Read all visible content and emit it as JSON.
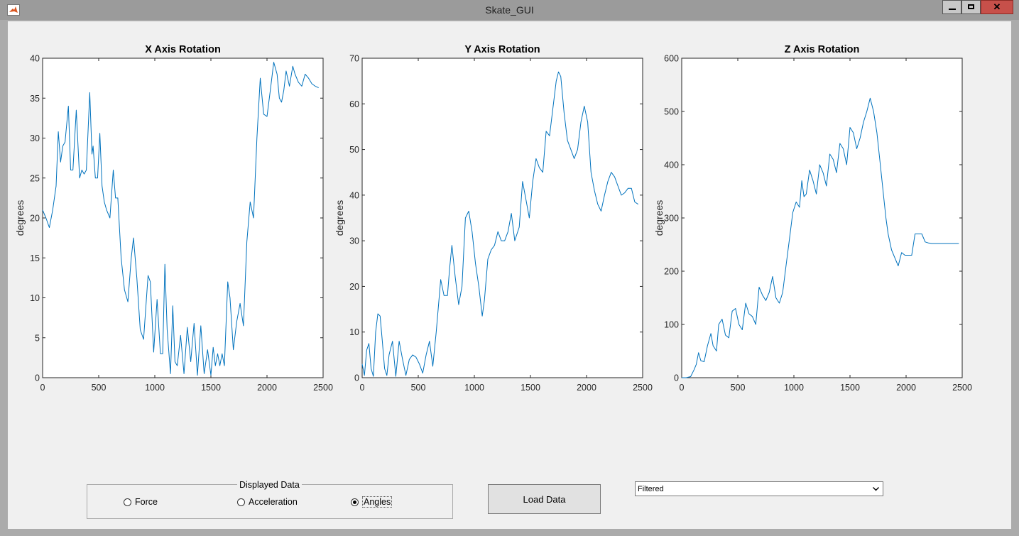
{
  "window": {
    "title": "Skate_GUI",
    "close_label": "✕",
    "colors": {
      "titlebar": "#9b9b9b",
      "close": "#c7504a",
      "figure_bg": "#f0f0f0",
      "line": "#0072bd"
    }
  },
  "controls": {
    "group_title": "Displayed Data",
    "radios": [
      {
        "label": "Force",
        "selected": false
      },
      {
        "label": "Acceleration",
        "selected": false
      },
      {
        "label": "Angles",
        "selected": true
      }
    ],
    "load_button": "Load Data",
    "filter": {
      "value": "Filtered"
    }
  },
  "chart_data": [
    {
      "type": "line",
      "title": "X Axis Rotation",
      "xlabel": "",
      "ylabel": "degrees",
      "xlim": [
        0,
        2500
      ],
      "ylim": [
        0,
        40
      ],
      "xticks": [
        0,
        500,
        1000,
        1500,
        2000,
        2500
      ],
      "yticks": [
        0,
        5,
        10,
        15,
        20,
        25,
        30,
        35,
        40
      ],
      "color": "#0072bd",
      "x": [
        0,
        30,
        60,
        90,
        120,
        140,
        160,
        180,
        200,
        230,
        250,
        270,
        300,
        330,
        350,
        370,
        390,
        420,
        440,
        450,
        470,
        490,
        510,
        530,
        550,
        570,
        600,
        630,
        650,
        670,
        700,
        730,
        760,
        790,
        810,
        840,
        870,
        900,
        940,
        960,
        990,
        1020,
        1050,
        1070,
        1090,
        1110,
        1140,
        1160,
        1180,
        1200,
        1230,
        1260,
        1290,
        1320,
        1350,
        1380,
        1410,
        1440,
        1470,
        1500,
        1520,
        1540,
        1560,
        1580,
        1600,
        1620,
        1650,
        1670,
        1700,
        1730,
        1760,
        1790,
        1820,
        1850,
        1880,
        1910,
        1940,
        1970,
        2000,
        2030,
        2060,
        2090,
        2110,
        2130,
        2150,
        2170,
        2200,
        2230,
        2250,
        2280,
        2310,
        2340,
        2370,
        2400,
        2430,
        2460
      ],
      "y": [
        21,
        20,
        18.8,
        21,
        24,
        30.8,
        27,
        29,
        29.5,
        34,
        26,
        26,
        33.5,
        25,
        26,
        25.5,
        26,
        35.7,
        28,
        29,
        25,
        25,
        30.6,
        24,
        22,
        21,
        20,
        26,
        22.5,
        22.5,
        15,
        11,
        9.5,
        15,
        17.5,
        12.5,
        6,
        4.8,
        12.8,
        12,
        3.2,
        9.8,
        3,
        3,
        14.2,
        6,
        0.5,
        9,
        2,
        1.5,
        5.3,
        0.5,
        6.3,
        2,
        6.8,
        0.3,
        6.5,
        0.5,
        3.5,
        0.3,
        3.8,
        1.5,
        3,
        1.5,
        3,
        1.5,
        12,
        10,
        3.5,
        7,
        9.3,
        6.5,
        17,
        22,
        20,
        30,
        37.5,
        33,
        32.7,
        36,
        39.5,
        38,
        35,
        34.5,
        36,
        38.4,
        36.5,
        39,
        38,
        37,
        36.5,
        38,
        37.5,
        36.8,
        36.5,
        36.3
      ]
    },
    {
      "type": "line",
      "title": "Y Axis Rotation",
      "xlabel": "",
      "ylabel": "degrees",
      "xlim": [
        0,
        2500
      ],
      "ylim": [
        0,
        70
      ],
      "xticks": [
        0,
        500,
        1000,
        1500,
        2000,
        2500
      ],
      "yticks": [
        0,
        10,
        20,
        30,
        40,
        50,
        60,
        70
      ],
      "color": "#0072bd",
      "x": [
        0,
        20,
        40,
        60,
        80,
        100,
        120,
        140,
        160,
        180,
        200,
        220,
        240,
        270,
        300,
        330,
        360,
        390,
        420,
        450,
        480,
        510,
        540,
        570,
        600,
        630,
        660,
        700,
        730,
        760,
        780,
        800,
        830,
        860,
        890,
        920,
        950,
        980,
        1010,
        1040,
        1070,
        1090,
        1120,
        1150,
        1180,
        1210,
        1240,
        1270,
        1300,
        1330,
        1360,
        1400,
        1430,
        1460,
        1490,
        1520,
        1550,
        1580,
        1610,
        1640,
        1670,
        1700,
        1730,
        1750,
        1770,
        1800,
        1830,
        1860,
        1890,
        1920,
        1950,
        1980,
        2010,
        2040,
        2070,
        2100,
        2130,
        2160,
        2190,
        2220,
        2250,
        2280,
        2310,
        2340,
        2370,
        2400,
        2430,
        2460
      ],
      "y": [
        3,
        0.5,
        6,
        7.5,
        2,
        0.3,
        10,
        14,
        13.5,
        8,
        2,
        0.5,
        5,
        8,
        0.3,
        8,
        4,
        0.5,
        4,
        5,
        4.5,
        3,
        1,
        5,
        8,
        2.5,
        10,
        21.5,
        18,
        18,
        24,
        29,
        22,
        16,
        20,
        35,
        36.5,
        32,
        25,
        20,
        13.5,
        17,
        26,
        28,
        29,
        32,
        30,
        30,
        32,
        36,
        30,
        33,
        43,
        39,
        35,
        43,
        48,
        46,
        45,
        54,
        53,
        59,
        65,
        67,
        66,
        58,
        52,
        50,
        48,
        50,
        56,
        59.5,
        56,
        45,
        41,
        38,
        36.5,
        40,
        43,
        45,
        44,
        42,
        40,
        40.5,
        41.5,
        41.5,
        38.5,
        38
      ]
    },
    {
      "type": "line",
      "title": "Z Axis Rotation",
      "xlabel": "",
      "ylabel": "degrees",
      "xlim": [
        0,
        2500
      ],
      "ylim": [
        0,
        600
      ],
      "xticks": [
        0,
        500,
        1000,
        1500,
        2000,
        2500
      ],
      "yticks": [
        0,
        100,
        200,
        300,
        400,
        500,
        600
      ],
      "color": "#0072bd",
      "x": [
        0,
        40,
        80,
        110,
        130,
        150,
        170,
        200,
        230,
        260,
        280,
        310,
        330,
        360,
        390,
        420,
        450,
        480,
        510,
        540,
        570,
        600,
        630,
        660,
        690,
        720,
        750,
        780,
        810,
        840,
        870,
        900,
        930,
        960,
        990,
        1020,
        1050,
        1070,
        1090,
        1110,
        1140,
        1170,
        1200,
        1230,
        1260,
        1290,
        1320,
        1350,
        1380,
        1410,
        1440,
        1470,
        1500,
        1530,
        1560,
        1590,
        1620,
        1650,
        1680,
        1710,
        1740,
        1770,
        1800,
        1820,
        1840,
        1870,
        1900,
        1930,
        1960,
        1990,
        2020,
        2050,
        2080,
        2110,
        2140,
        2170,
        2200,
        2230,
        2260,
        2290,
        2320,
        2350,
        2380,
        2410,
        2440,
        2470
      ],
      "y": [
        0,
        0,
        2,
        15,
        25,
        47,
        32,
        30,
        60,
        83,
        60,
        50,
        100,
        110,
        80,
        75,
        125,
        130,
        100,
        90,
        140,
        120,
        115,
        100,
        170,
        155,
        145,
        160,
        190,
        150,
        140,
        160,
        210,
        260,
        310,
        330,
        320,
        370,
        340,
        345,
        390,
        370,
        345,
        400,
        385,
        360,
        420,
        410,
        385,
        440,
        430,
        400,
        470,
        460,
        430,
        450,
        480,
        500,
        525,
        500,
        460,
        400,
        340,
        300,
        270,
        240,
        225,
        210,
        235,
        230,
        230,
        230,
        270,
        270,
        270,
        255,
        253,
        252,
        252,
        252,
        252,
        252,
        252,
        252,
        252,
        252
      ]
    }
  ]
}
